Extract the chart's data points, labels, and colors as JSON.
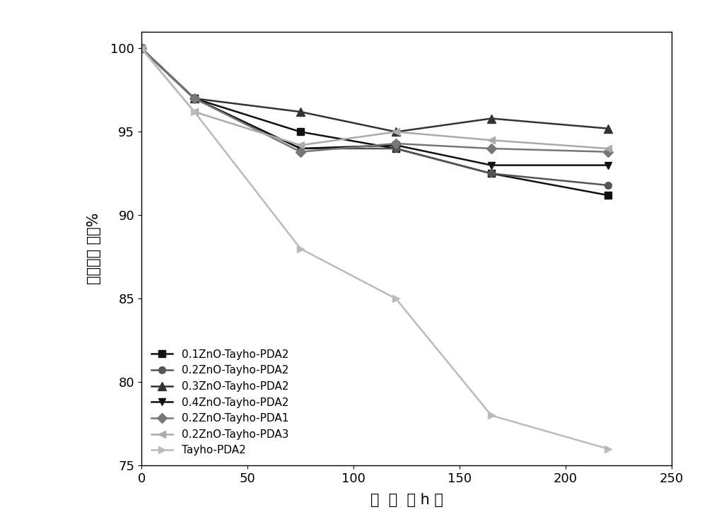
{
  "x_values": [
    0,
    25,
    75,
    120,
    165,
    220
  ],
  "series": [
    {
      "label": "0.1ZnO-Tayho-PDA2",
      "y": [
        100,
        97,
        95,
        94,
        92.5,
        91.2
      ],
      "color": "#111111",
      "marker": "s",
      "linestyle": "-",
      "linewidth": 1.8,
      "markersize": 7
    },
    {
      "label": "0.2ZnO-Tayho-PDA2",
      "y": [
        100,
        97,
        94,
        94,
        92.5,
        91.8
      ],
      "color": "#555555",
      "marker": "o",
      "linestyle": "-",
      "linewidth": 1.8,
      "markersize": 7
    },
    {
      "label": "0.3ZnO-Tayho-PDA2",
      "y": [
        100,
        97,
        96.2,
        95,
        95.8,
        95.2
      ],
      "color": "#333333",
      "marker": "^",
      "linestyle": "-",
      "linewidth": 1.8,
      "markersize": 8
    },
    {
      "label": "0.4ZnO-Tayho-PDA2",
      "y": [
        100,
        97,
        94,
        94.2,
        93,
        93
      ],
      "color": "#111111",
      "marker": "v",
      "linestyle": "-",
      "linewidth": 1.8,
      "markersize": 7
    },
    {
      "label": "0.2ZnO-Tayho-PDA1",
      "y": [
        100,
        97,
        93.8,
        94.3,
        94,
        93.8
      ],
      "color": "#777777",
      "marker": "D",
      "linestyle": "-",
      "linewidth": 1.8,
      "markersize": 7
    },
    {
      "label": "0.2ZnO-Tayho-PDA3",
      "y": [
        100,
        96.2,
        94.2,
        95,
        94.5,
        94
      ],
      "color": "#aaaaaa",
      "marker": "<",
      "linestyle": "-",
      "linewidth": 1.8,
      "markersize": 7
    },
    {
      "label": "Tayho-PDA2",
      "y": [
        100,
        96.2,
        88,
        85,
        78,
        76
      ],
      "color": "#bbbbbb",
      "marker": ">",
      "linestyle": "-",
      "linewidth": 1.8,
      "markersize": 7
    }
  ],
  "xlabel": "时  间  （ h ）",
  "ylabel": "断裂能保 持率%",
  "xlim": [
    0,
    250
  ],
  "ylim": [
    75,
    101
  ],
  "xticks": [
    0,
    50,
    100,
    150,
    200,
    250
  ],
  "yticks": [
    75,
    80,
    85,
    90,
    95,
    100
  ],
  "legend_loc": "lower left",
  "background_color": "#ffffff",
  "xlabel_fontsize": 15,
  "ylabel_fontsize": 15,
  "tick_fontsize": 13,
  "legend_fontsize": 11
}
